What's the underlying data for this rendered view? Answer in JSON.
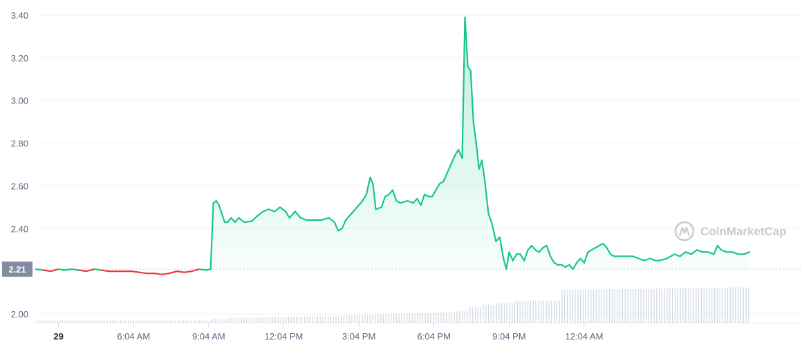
{
  "chart_data": {
    "type": "line",
    "watermark": "CoinMarketCap",
    "reference_value": 2.21,
    "reference_label": "2.21",
    "ylim": [
      1.97,
      3.42
    ],
    "yticks": [
      {
        "value": 2.0,
        "label": "2.00"
      },
      {
        "value": 2.4,
        "label": "2.40"
      },
      {
        "value": 2.6,
        "label": "2.60"
      },
      {
        "value": 2.8,
        "label": "2.80"
      },
      {
        "value": 3.0,
        "label": "3.00"
      },
      {
        "value": 3.2,
        "label": "3.20"
      },
      {
        "value": 3.4,
        "label": "3.40"
      }
    ],
    "xrange_hours": [
      -1.2,
      39.6
    ],
    "xticks": [
      {
        "t": 0,
        "label": "29",
        "bold": true
      },
      {
        "t": 4,
        "label": "6:04 AM"
      },
      {
        "t": 8,
        "label": "9:04 AM"
      },
      {
        "t": 12,
        "label": "12:04 PM"
      },
      {
        "t": 16,
        "label": "3:04 PM"
      },
      {
        "t": 20,
        "label": "6:04 PM"
      },
      {
        "t": 24,
        "label": "9:04 PM"
      },
      {
        "t": 28,
        "label": "12:04 AM"
      }
    ],
    "colors": {
      "up": "#16c784",
      "down": "#ea3943",
      "volume": "#cfd6e4",
      "badge": "#858ca2"
    },
    "series": [
      {
        "values": [
          [
            -1.2,
            2.21
          ],
          [
            -0.8,
            2.205
          ],
          [
            -0.4,
            2.2
          ],
          [
            0.0,
            2.21
          ],
          [
            0.3,
            2.205
          ],
          [
            0.7,
            2.21
          ],
          [
            1.1,
            2.205
          ],
          [
            1.5,
            2.2
          ],
          [
            1.9,
            2.21
          ],
          [
            2.3,
            2.205
          ],
          [
            2.7,
            2.2
          ],
          [
            3.1,
            2.2
          ],
          [
            3.5,
            2.2
          ],
          [
            3.9,
            2.2
          ],
          [
            4.3,
            2.195
          ],
          [
            4.7,
            2.19
          ],
          [
            5.1,
            2.19
          ],
          [
            5.5,
            2.185
          ],
          [
            5.9,
            2.19
          ],
          [
            6.3,
            2.2
          ],
          [
            6.7,
            2.195
          ],
          [
            7.1,
            2.2
          ],
          [
            7.5,
            2.21
          ],
          [
            7.9,
            2.205
          ],
          [
            8.1,
            2.21
          ],
          [
            8.25,
            2.52
          ],
          [
            8.4,
            2.53
          ],
          [
            8.55,
            2.51
          ],
          [
            8.7,
            2.47
          ],
          [
            8.85,
            2.43
          ],
          [
            9.0,
            2.43
          ],
          [
            9.2,
            2.45
          ],
          [
            9.4,
            2.43
          ],
          [
            9.6,
            2.45
          ],
          [
            9.9,
            2.43
          ],
          [
            10.3,
            2.435
          ],
          [
            10.6,
            2.46
          ],
          [
            10.9,
            2.48
          ],
          [
            11.2,
            2.49
          ],
          [
            11.5,
            2.48
          ],
          [
            11.8,
            2.5
          ],
          [
            12.1,
            2.48
          ],
          [
            12.3,
            2.45
          ],
          [
            12.6,
            2.48
          ],
          [
            12.9,
            2.45
          ],
          [
            13.2,
            2.44
          ],
          [
            13.6,
            2.44
          ],
          [
            14.0,
            2.44
          ],
          [
            14.4,
            2.45
          ],
          [
            14.7,
            2.43
          ],
          [
            14.9,
            2.39
          ],
          [
            15.1,
            2.4
          ],
          [
            15.3,
            2.44
          ],
          [
            15.6,
            2.47
          ],
          [
            15.9,
            2.5
          ],
          [
            16.2,
            2.53
          ],
          [
            16.4,
            2.56
          ],
          [
            16.6,
            2.64
          ],
          [
            16.75,
            2.61
          ],
          [
            16.9,
            2.49
          ],
          [
            17.2,
            2.5
          ],
          [
            17.4,
            2.55
          ],
          [
            17.6,
            2.56
          ],
          [
            17.8,
            2.58
          ],
          [
            18.0,
            2.53
          ],
          [
            18.2,
            2.52
          ],
          [
            18.6,
            2.53
          ],
          [
            18.9,
            2.52
          ],
          [
            19.1,
            2.54
          ],
          [
            19.3,
            2.51
          ],
          [
            19.5,
            2.56
          ],
          [
            19.7,
            2.55
          ],
          [
            19.9,
            2.55
          ],
          [
            20.1,
            2.58
          ],
          [
            20.3,
            2.61
          ],
          [
            20.5,
            2.62
          ],
          [
            20.7,
            2.66
          ],
          [
            20.9,
            2.7
          ],
          [
            21.1,
            2.74
          ],
          [
            21.3,
            2.77
          ],
          [
            21.5,
            2.73
          ],
          [
            21.65,
            3.39
          ],
          [
            21.8,
            3.16
          ],
          [
            21.95,
            3.14
          ],
          [
            22.1,
            2.9
          ],
          [
            22.25,
            2.8
          ],
          [
            22.4,
            2.68
          ],
          [
            22.55,
            2.72
          ],
          [
            22.7,
            2.63
          ],
          [
            22.9,
            2.47
          ],
          [
            23.1,
            2.42
          ],
          [
            23.3,
            2.34
          ],
          [
            23.5,
            2.36
          ],
          [
            23.7,
            2.26
          ],
          [
            23.85,
            2.21
          ],
          [
            24.0,
            2.29
          ],
          [
            24.2,
            2.25
          ],
          [
            24.4,
            2.28
          ],
          [
            24.6,
            2.28
          ],
          [
            24.8,
            2.25
          ],
          [
            25.0,
            2.3
          ],
          [
            25.2,
            2.32
          ],
          [
            25.4,
            2.3
          ],
          [
            25.6,
            2.29
          ],
          [
            25.8,
            2.31
          ],
          [
            26.0,
            2.32
          ],
          [
            26.2,
            2.27
          ],
          [
            26.4,
            2.24
          ],
          [
            26.6,
            2.23
          ],
          [
            26.8,
            2.23
          ],
          [
            27.0,
            2.22
          ],
          [
            27.2,
            2.23
          ],
          [
            27.4,
            2.21
          ],
          [
            27.6,
            2.24
          ],
          [
            27.8,
            2.26
          ],
          [
            28.0,
            2.24
          ],
          [
            28.2,
            2.29
          ],
          [
            28.4,
            2.3
          ],
          [
            28.6,
            2.31
          ],
          [
            28.8,
            2.32
          ],
          [
            29.0,
            2.33
          ],
          [
            29.2,
            2.31
          ],
          [
            29.4,
            2.28
          ],
          [
            29.6,
            2.27
          ],
          [
            29.9,
            2.27
          ],
          [
            30.2,
            2.27
          ],
          [
            30.6,
            2.27
          ],
          [
            30.9,
            2.26
          ],
          [
            31.2,
            2.25
          ],
          [
            31.5,
            2.26
          ],
          [
            31.8,
            2.25
          ],
          [
            32.0,
            2.25
          ],
          [
            32.4,
            2.26
          ],
          [
            32.8,
            2.28
          ],
          [
            33.1,
            2.27
          ],
          [
            33.4,
            2.29
          ],
          [
            33.7,
            2.28
          ],
          [
            34.0,
            2.3
          ],
          [
            34.3,
            2.29
          ],
          [
            34.6,
            2.29
          ],
          [
            34.9,
            2.28
          ],
          [
            35.1,
            2.32
          ],
          [
            35.3,
            2.3
          ],
          [
            35.6,
            2.29
          ],
          [
            35.9,
            2.29
          ],
          [
            36.2,
            2.28
          ],
          [
            36.5,
            2.28
          ],
          [
            36.8,
            2.29
          ]
        ]
      }
    ],
    "volume": [
      [
        -1.2,
        3
      ],
      [
        8.0,
        3
      ],
      [
        8.1,
        5
      ],
      [
        9.0,
        6
      ],
      [
        10.0,
        6.5
      ],
      [
        11.0,
        7
      ],
      [
        12.0,
        7.5
      ],
      [
        13.0,
        8
      ],
      [
        14.0,
        8
      ],
      [
        15.0,
        9
      ],
      [
        16.0,
        10
      ],
      [
        17.0,
        11
      ],
      [
        18.0,
        11.5
      ],
      [
        19.0,
        12
      ],
      [
        20.0,
        13
      ],
      [
        21.0,
        14
      ],
      [
        21.8,
        19
      ],
      [
        22.5,
        22
      ],
      [
        23.3,
        24
      ],
      [
        24.2,
        26
      ],
      [
        25.0,
        27
      ],
      [
        26.0,
        27
      ],
      [
        26.7,
        40
      ],
      [
        27.5,
        40
      ],
      [
        28.5,
        41
      ],
      [
        29.5,
        41
      ],
      [
        30.5,
        41
      ],
      [
        31.5,
        41.5
      ],
      [
        32.5,
        42
      ],
      [
        33.5,
        42
      ],
      [
        34.5,
        42.5
      ],
      [
        35.5,
        43
      ],
      [
        36.8,
        43
      ]
    ],
    "volume_max": 60
  }
}
